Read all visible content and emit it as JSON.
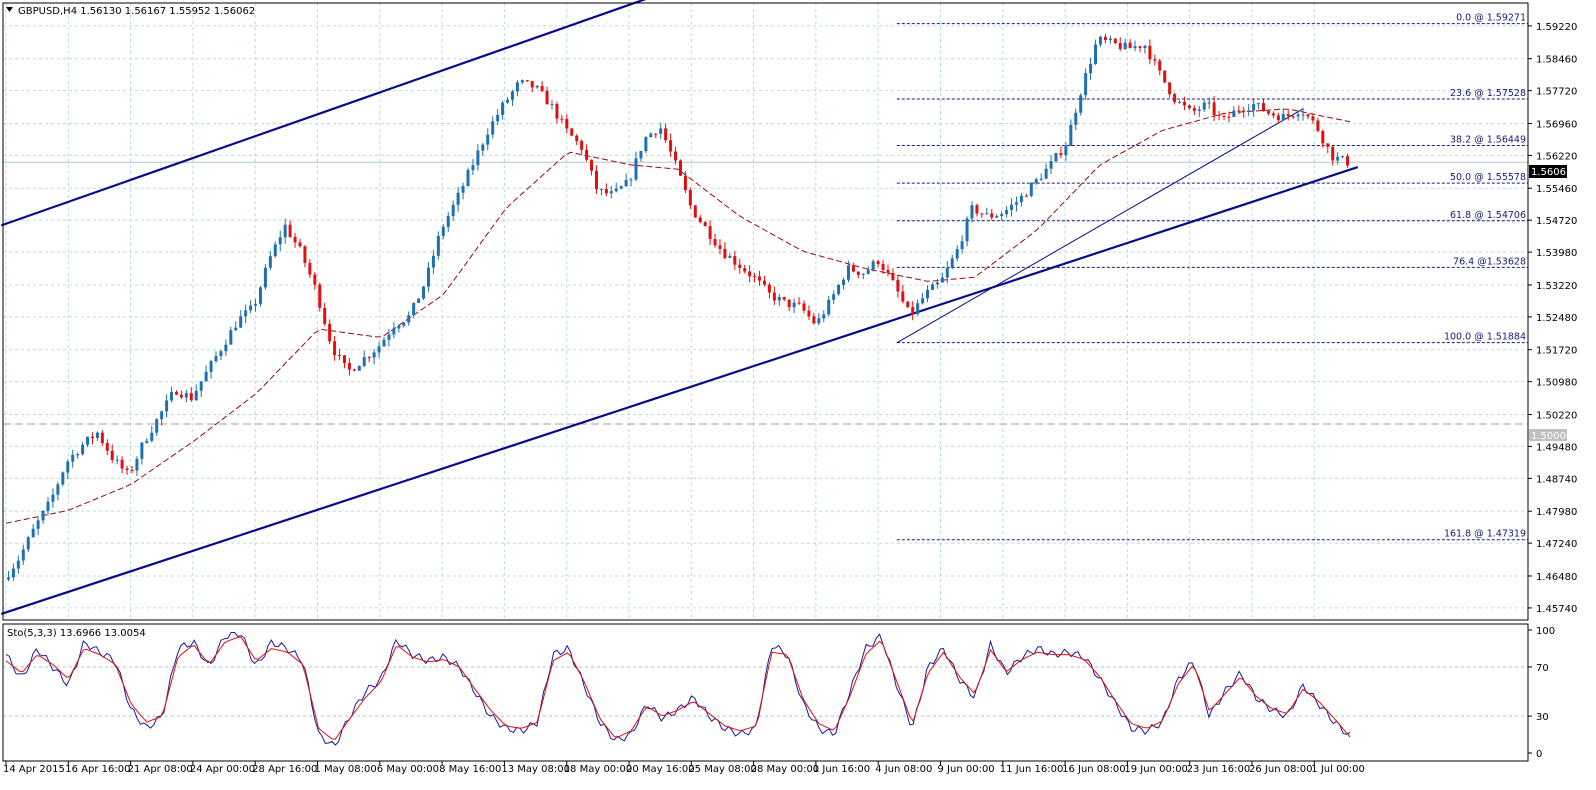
{
  "chart_data": [
    {
      "type": "candlestick",
      "title": "GBPUSD,H4  1.56130 1.56167 1.55952 1.56062",
      "symbol": "GBPUSD",
      "timeframe": "H4",
      "ohlc_header": {
        "open": 1.5613,
        "high": 1.56167,
        "low": 1.55952,
        "close": 1.56062
      },
      "current_price_label": "1.56062",
      "current_price": 1.56062,
      "level_label": "1.50000",
      "level_value": 1.5,
      "ylim": [
        1.4546,
        1.5975
      ],
      "y_tick_labels": [
        "1.59220",
        "1.58460",
        "1.57720",
        "1.56960",
        "1.56220",
        "1.55460",
        "1.54720",
        "1.53980",
        "1.53220",
        "1.52480",
        "1.51720",
        "1.50980",
        "1.50220",
        "1.49480",
        "1.48740",
        "1.47980",
        "1.47240",
        "1.46480",
        "1.45740"
      ],
      "x_tick_labels": [
        "14 Apr 2015",
        "16 Apr 16:00",
        "21 Apr 08:00",
        "24 Apr 00:00",
        "28 Apr 16:00",
        "1 May 08:00",
        "6 May 00:00",
        "8 May 16:00",
        "13 May 08:00",
        "18 May 00:00",
        "20 May 16:00",
        "25 May 08:00",
        "28 May 00:00",
        "1 Jun 16:00",
        "4 Jun 08:00",
        "9 Jun 00:00",
        "11 Jun 16:00",
        "16 Jun 08:00",
        "19 Jun 00:00",
        "23 Jun 16:00",
        "26 Jun 08:00",
        "1 Jul 00:00"
      ],
      "price_path": [
        [
          0,
          1.464
        ],
        [
          1,
          1.469
        ],
        [
          2,
          1.476
        ],
        [
          3,
          1.482
        ],
        [
          4,
          1.491
        ],
        [
          5,
          1.495
        ],
        [
          6,
          1.498
        ],
        [
          7,
          1.492
        ],
        [
          8,
          1.488
        ],
        [
          9,
          1.496
        ],
        [
          10,
          1.502
        ],
        [
          11,
          1.508
        ],
        [
          12,
          1.506
        ],
        [
          13,
          1.512
        ],
        [
          14,
          1.518
        ],
        [
          15,
          1.524
        ],
        [
          16,
          1.527
        ],
        [
          17,
          1.538
        ],
        [
          18,
          1.546
        ],
        [
          19,
          1.54
        ],
        [
          20,
          1.531
        ],
        [
          21,
          1.518
        ],
        [
          22,
          1.512
        ],
        [
          23,
          1.515
        ],
        [
          24,
          1.518
        ],
        [
          25,
          1.523
        ],
        [
          26,
          1.525
        ],
        [
          27,
          1.533
        ],
        [
          28,
          1.545
        ],
        [
          29,
          1.552
        ],
        [
          30,
          1.56
        ],
        [
          31,
          1.568
        ],
        [
          32,
          1.574
        ],
        [
          33,
          1.579
        ],
        [
          34,
          1.578
        ],
        [
          35,
          1.574
        ],
        [
          36,
          1.568
        ],
        [
          37,
          1.564
        ],
        [
          38,
          1.554
        ],
        [
          39,
          1.553
        ],
        [
          40,
          1.556
        ],
        [
          41,
          1.566
        ],
        [
          42,
          1.569
        ],
        [
          43,
          1.56
        ],
        [
          44,
          1.55
        ],
        [
          45,
          1.545
        ],
        [
          46,
          1.54
        ],
        [
          47,
          1.537
        ],
        [
          48,
          1.534
        ],
        [
          49,
          1.53
        ],
        [
          50,
          1.528
        ],
        [
          51,
          1.527
        ],
        [
          52,
          1.523
        ],
        [
          53,
          1.529
        ],
        [
          54,
          1.536
        ],
        [
          55,
          1.535
        ],
        [
          56,
          1.538
        ],
        [
          57,
          1.532
        ],
        [
          58,
          1.525
        ],
        [
          59,
          1.53
        ],
        [
          60,
          1.533
        ],
        [
          61,
          1.54
        ],
        [
          62,
          1.55
        ],
        [
          63,
          1.548
        ],
        [
          64,
          1.549
        ],
        [
          65,
          1.552
        ],
        [
          66,
          1.556
        ],
        [
          67,
          1.56
        ],
        [
          68,
          1.565
        ],
        [
          69,
          1.578
        ],
        [
          70,
          1.589
        ],
        [
          71,
          1.588
        ],
        [
          72,
          1.587
        ],
        [
          73,
          1.588
        ],
        [
          74,
          1.581
        ],
        [
          75,
          1.575
        ],
        [
          76,
          1.572
        ],
        [
          77,
          1.574
        ],
        [
          78,
          1.57
        ],
        [
          79,
          1.573
        ],
        [
          80,
          1.574
        ],
        [
          81,
          1.572
        ],
        [
          82,
          1.571
        ],
        [
          83,
          1.573
        ],
        [
          84,
          1.569
        ],
        [
          85,
          1.562
        ],
        [
          86,
          1.5606
        ]
      ],
      "ma_path": [
        [
          0,
          1.477
        ],
        [
          4,
          1.48
        ],
        [
          8,
          1.486
        ],
        [
          12,
          1.496
        ],
        [
          16,
          1.507
        ],
        [
          20,
          1.522
        ],
        [
          24,
          1.52
        ],
        [
          28,
          1.53
        ],
        [
          32,
          1.55
        ],
        [
          36,
          1.563
        ],
        [
          40,
          1.56
        ],
        [
          43,
          1.559
        ],
        [
          47,
          1.548
        ],
        [
          51,
          1.54
        ],
        [
          55,
          1.536
        ],
        [
          59,
          1.533
        ],
        [
          62,
          1.534
        ],
        [
          66,
          1.545
        ],
        [
          70,
          1.56
        ],
        [
          74,
          1.568
        ],
        [
          78,
          1.572
        ],
        [
          82,
          1.573
        ],
        [
          86,
          1.57
        ]
      ],
      "trendlines": [
        {
          "name": "channel-upper",
          "from": [
            -0.3,
            1.546
          ],
          "to": [
            41,
            1.5985
          ]
        },
        {
          "name": "channel-lower",
          "from": [
            -0.3,
            1.456
          ],
          "to": [
            86.5,
            1.5595
          ]
        },
        {
          "name": "fib-base-line",
          "from": [
            57,
            1.5188
          ],
          "to": [
            83,
            1.573
          ]
        }
      ],
      "fibonacci": {
        "start_x": 57,
        "end_x": 86.5,
        "levels": [
          {
            "label": "0.0 @ 1.59271",
            "value": 1.59271
          },
          {
            "label": "23.6 @ 1.57528",
            "value": 1.57528
          },
          {
            "label": "38.2 @ 1.56449",
            "value": 1.56449
          },
          {
            "label": "50.0 @ 1.55578",
            "value": 1.55578
          },
          {
            "label": "61.8 @ 1.54706",
            "value": 1.54706
          },
          {
            "label": "76.4 @1.53628",
            "value": 1.53628
          },
          {
            "label": "100.0 @ 1.51884",
            "value": 1.51884
          },
          {
            "label": "161.8 @ 1.47319",
            "value": 1.47319
          }
        ]
      },
      "colors": {
        "bull": "#1f6fb5",
        "bear": "#e01010",
        "ma": "#9a0a0a",
        "trend": "#0a0a8a",
        "grid": "#b7dde0",
        "fib": "#1a1a7a"
      }
    },
    {
      "type": "line",
      "title": "Sto(5,3,3) 13.6966 13.0054",
      "indicator": "Stochastic",
      "params": "5,3,3",
      "main_value": 13.6966,
      "signal_value": 13.0054,
      "ylim": [
        0,
        100
      ],
      "y_tick_labels": [
        "100",
        "70",
        "30",
        "0"
      ],
      "levels": [
        70,
        30
      ],
      "series": [
        {
          "values": [
            80,
            60,
            85,
            70,
            55,
            90,
            82,
            75,
            35,
            20,
            30,
            85,
            90,
            70,
            95,
            98,
            70,
            90,
            85,
            75,
            15,
            5,
            30,
            50,
            60,
            92,
            80,
            75,
            78,
            70,
            50,
            30,
            20,
            18,
            25,
            80,
            85,
            55,
            25,
            10,
            15,
            40,
            28,
            35,
            45,
            30,
            20,
            15,
            20,
            88,
            80,
            40,
            20,
            15,
            50,
            85,
            95,
            55,
            20,
            70,
            85,
            60,
            45,
            88,
            65,
            78,
            85,
            80,
            82,
            78,
            60,
            40,
            20,
            18,
            25,
            60,
            75,
            30,
            50,
            65,
            45,
            35,
            30,
            55,
            40,
            25,
            13.7
          ]
        },
        {
          "values": [
            75,
            65,
            80,
            72,
            60,
            85,
            80,
            72,
            40,
            25,
            30,
            78,
            88,
            72,
            90,
            95,
            75,
            85,
            82,
            72,
            20,
            10,
            28,
            45,
            58,
            88,
            78,
            74,
            76,
            70,
            52,
            35,
            22,
            20,
            25,
            75,
            82,
            58,
            28,
            12,
            18,
            38,
            30,
            35,
            42,
            32,
            22,
            18,
            22,
            82,
            80,
            44,
            24,
            18,
            46,
            80,
            92,
            58,
            24,
            65,
            82,
            62,
            48,
            84,
            66,
            76,
            82,
            80,
            80,
            76,
            62,
            42,
            24,
            20,
            26,
            56,
            72,
            34,
            48,
            62,
            46,
            36,
            32,
            52,
            42,
            28,
            13.0
          ]
        }
      ],
      "colors": {
        "main": "#1a1aa0",
        "signal": "#e01010"
      }
    }
  ]
}
